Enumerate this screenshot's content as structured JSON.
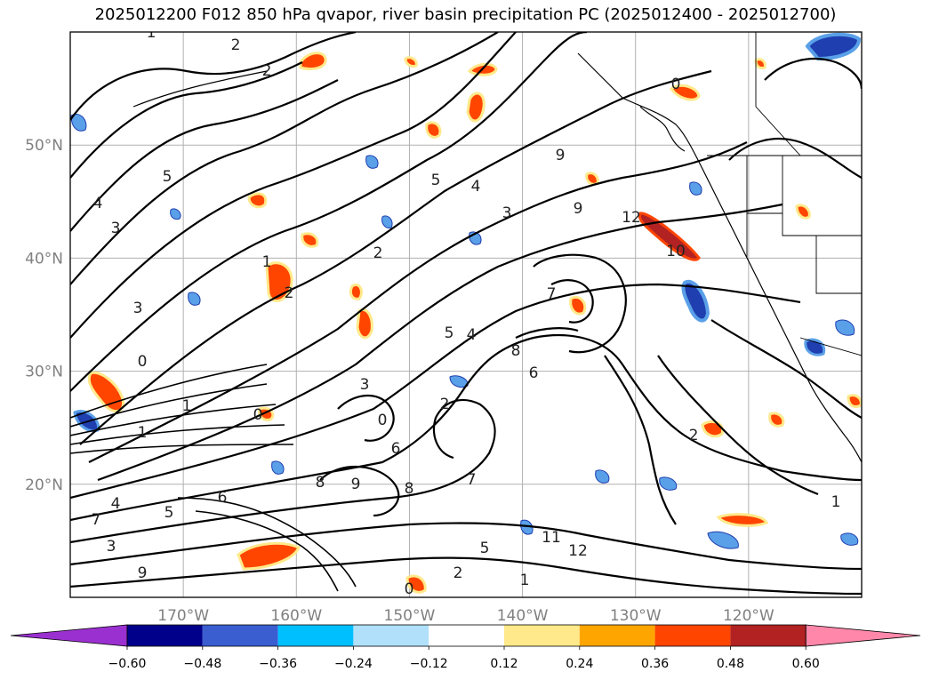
{
  "title": "2025012200 F012 850 hPa qvapor, river basin precipitation PC (2025012400 - 2025012700)",
  "map": {
    "lat_labels": [
      {
        "text": "50°N",
        "lat": 50
      },
      {
        "text": "40°N",
        "lat": 40
      },
      {
        "text": "30°N",
        "lat": 30
      },
      {
        "text": "20°N",
        "lat": 20
      }
    ],
    "lon_labels": [
      {
        "text": "170°W",
        "lon": -170
      },
      {
        "text": "160°W",
        "lon": -160
      },
      {
        "text": "150°W",
        "lon": -150
      },
      {
        "text": "140°W",
        "lon": -140
      },
      {
        "text": "130°W",
        "lon": -130
      },
      {
        "text": "120°W",
        "lon": -120
      }
    ],
    "extent": {
      "lon_min": -180,
      "lon_max": -110,
      "lat_min": 10,
      "lat_max": 60
    },
    "gridlines": true,
    "contour_labels": [
      "1",
      "2",
      "2",
      "3",
      "4",
      "5",
      "2",
      "1",
      "2",
      "3",
      "0",
      "1",
      "0",
      "1",
      "0",
      "2",
      "3",
      "4",
      "5",
      "6",
      "7",
      "8",
      "9",
      "8",
      "6",
      "5",
      "4",
      "3",
      "9",
      "7",
      "5",
      "2",
      "1",
      "0",
      "11",
      "12",
      "12",
      "10",
      "9",
      "7",
      "5",
      "4",
      "3",
      "9",
      "8",
      "6",
      "2",
      "1",
      "0"
    ]
  },
  "colorbar": {
    "colors": [
      "#9b30d0",
      "#00008b",
      "#3a5ed0",
      "#00bfff",
      "#b0e0fa",
      "#ffffff",
      "#ffe98a",
      "#ffa500",
      "#ff4500",
      "#b22222",
      "#ff88aa"
    ],
    "tick_labels": [
      "−0.60",
      "−0.48",
      "−0.36",
      "−0.24",
      "−0.12",
      "0.12",
      "0.24",
      "0.36",
      "0.48",
      "0.60"
    ],
    "extend": "both"
  },
  "fill_colors": {
    "neg_light": "#5aa0e8",
    "neg_dark": "#1f3fb0",
    "pos_light": "#ffa500",
    "pos_dark": "#ff4500",
    "pos_edge": "#ffe98a"
  }
}
